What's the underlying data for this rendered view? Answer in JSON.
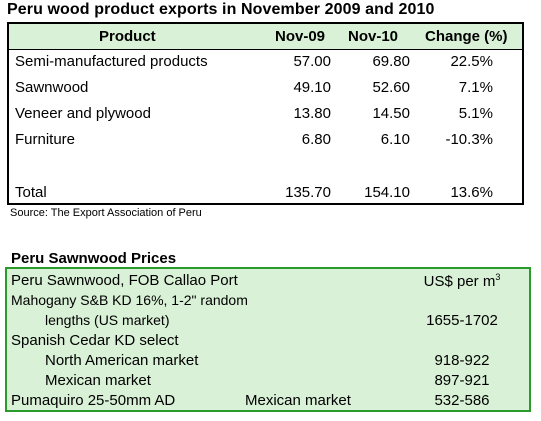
{
  "exports": {
    "title": "Peru wood product exports in November 2009 and 2010",
    "headers": {
      "product": "Product",
      "nov09": "Nov-09",
      "nov10": "Nov-10",
      "change": "Change (%)"
    },
    "rows": [
      {
        "product": "Semi-manufactured products",
        "nov09": "57.00",
        "nov10": "69.80",
        "change": "22.5%"
      },
      {
        "product": "Sawnwood",
        "nov09": "49.10",
        "nov10": "52.60",
        "change": "7.1%"
      },
      {
        "product": "Veneer and plywood",
        "nov09": "13.80",
        "nov10": "14.50",
        "change": "5.1%"
      },
      {
        "product": "Furniture",
        "nov09": "6.80",
        "nov10": "6.10",
        "change": "-10.3%"
      }
    ],
    "total": {
      "product": "Total",
      "nov09": "135.70",
      "nov10": "154.10",
      "change": "13.6%"
    },
    "source": "Source: The Export Association of Peru"
  },
  "prices": {
    "title": "Peru Sawnwood Prices",
    "header_left": "Peru Sawnwood, FOB Callao Port",
    "header_unit": "US$ per m",
    "header_unit_sup": "3",
    "mahogany_line1": "Mahogany S&B KD 16%, 1-2\" random",
    "mahogany_line2": "lengths (US market)",
    "mahogany_value": "1655-1702",
    "cedar_label": "Spanish Cedar KD select",
    "na_label": "North American market",
    "na_value": "918-922",
    "mex_label": "Mexican market",
    "mex_value": "897-921",
    "puma_label": "Pumaquiro 25-50mm AD",
    "puma_market": "Mexican market",
    "puma_value": "532-586"
  }
}
